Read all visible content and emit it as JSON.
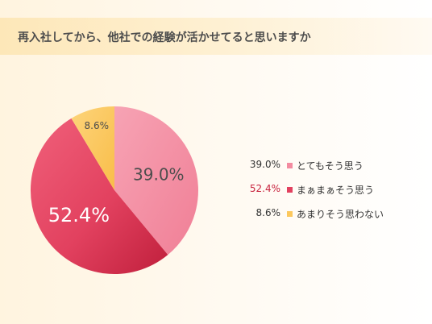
{
  "header": {
    "title": "再入社してから、他社での経験が活かせてると思いますか"
  },
  "chart_data": {
    "type": "pie",
    "title": "再入社してから、他社での経験が活かせてると思いますか",
    "slices": [
      {
        "label": "とてもそう思う",
        "value": 39.0,
        "display": "39.0%",
        "color": "#f38ba0",
        "legend_text_color": "#333333"
      },
      {
        "label": "まぁまぁそう思う",
        "value": 52.4,
        "display": "52.4%",
        "color": "#e2415f",
        "legend_text_color": "#c8243f"
      },
      {
        "label": "あまりそう思わない",
        "value": 8.6,
        "display": "8.6%",
        "color": "#fcc85d",
        "legend_text_color": "#333333"
      }
    ],
    "start_angle_deg": 0,
    "direction": "clockwise",
    "legend_position": "right"
  }
}
